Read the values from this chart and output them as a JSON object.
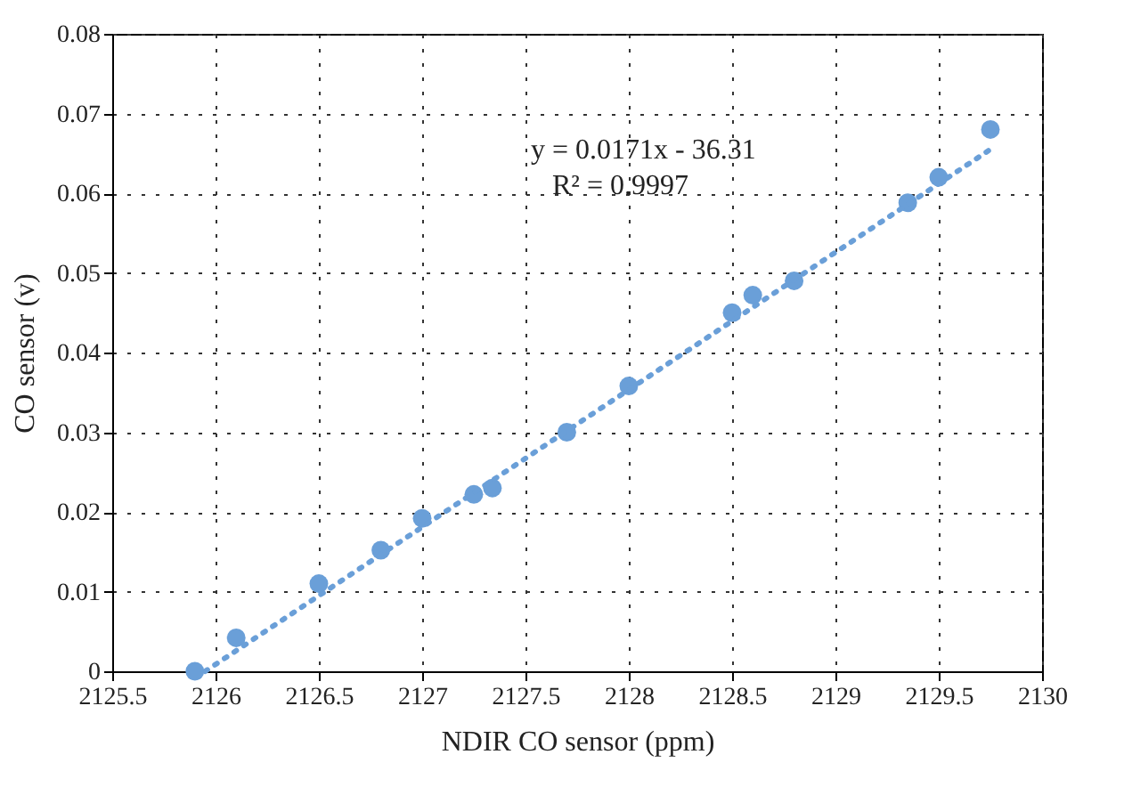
{
  "chart_data": {
    "type": "scatter",
    "xlabel": "NDIR CO sensor (ppm)",
    "ylabel": "CO sensor (v)",
    "annotations": [
      "y = 0.0171x - 36.31",
      "R² = 0.9997"
    ],
    "xlim": [
      2125.5,
      2130
    ],
    "xticks": [
      2125.5,
      2126,
      2126.5,
      2127,
      2127.5,
      2128,
      2128.5,
      2129,
      2129.5,
      2130
    ],
    "ylim": [
      0,
      0.08
    ],
    "yticks": [
      0,
      0.01,
      0.02,
      0.03,
      0.04,
      0.05,
      0.06,
      0.07,
      0.08
    ],
    "grid": true,
    "series": [
      {
        "marker": "circle",
        "color": "#6a9fd8",
        "x": [
          2125.9,
          2126.1,
          2126.5,
          2126.8,
          2127.0,
          2127.25,
          2127.34,
          2127.7,
          2128.0,
          2128.5,
          2128.6,
          2128.8,
          2129.35,
          2129.5,
          2129.75
        ],
        "values": [
          0,
          0.0042,
          0.011,
          0.0152,
          0.0192,
          0.0222,
          0.023,
          0.03,
          0.0358,
          0.045,
          0.0472,
          0.049,
          0.0588,
          0.062,
          0.068
        ]
      },
      {
        "type": "line",
        "line_style": "dotted",
        "color": "#6a9fd8",
        "x": [
          2125.95,
          2129.75
        ],
        "values": [
          0,
          0.0655
        ]
      }
    ]
  }
}
